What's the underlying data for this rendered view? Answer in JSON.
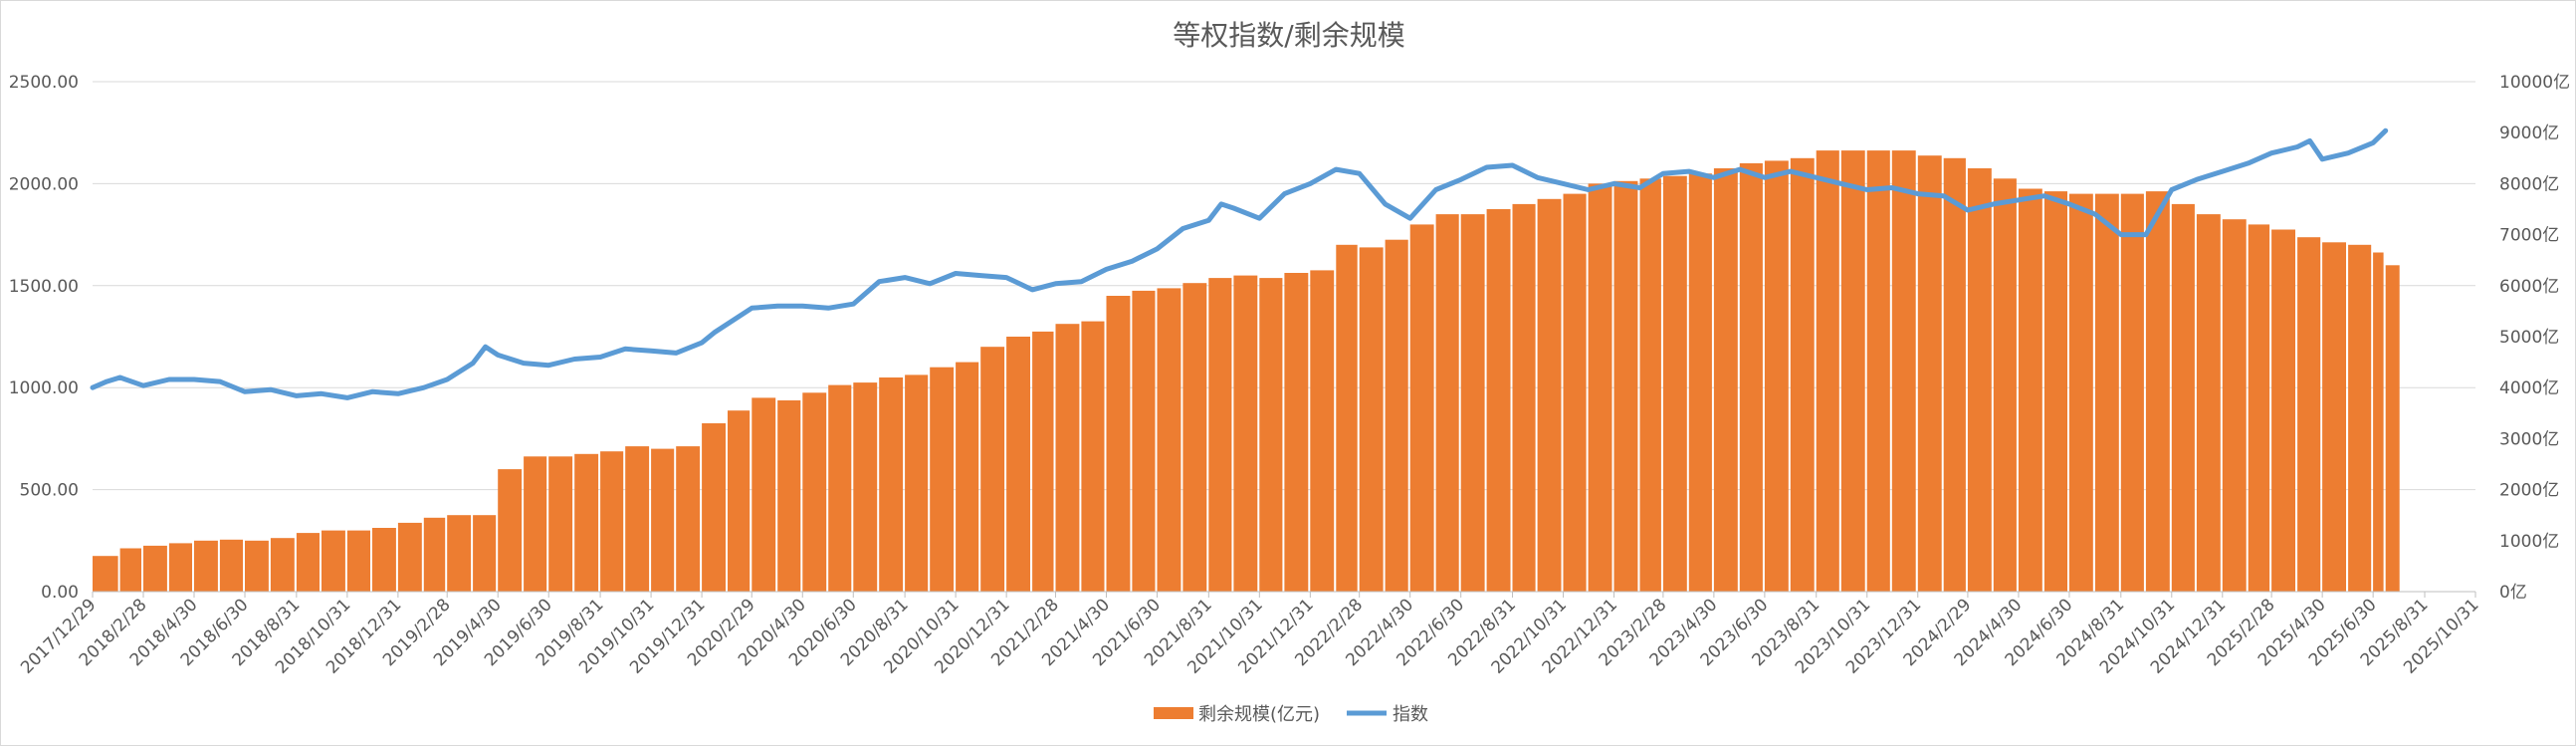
{
  "chart_data": {
    "type": "bar",
    "title": "等权指数/剩余规模",
    "left_axis": {
      "min": 0,
      "max": 2500,
      "step": 500,
      "tick_labels": [
        "0.00",
        "500.00",
        "1000.00",
        "1500.00",
        "2000.00",
        "2500.00"
      ]
    },
    "right_axis": {
      "min": 0,
      "max": 10000,
      "step": 1000,
      "tick_labels": [
        "0亿",
        "1000亿",
        "2000亿",
        "3000亿",
        "4000亿",
        "5000亿",
        "6000亿",
        "7000亿",
        "8000亿",
        "9000亿",
        "10000亿"
      ]
    },
    "x_range": [
      "2017-12-29",
      "2025-10-31"
    ],
    "x_tick_labels": [
      "2017/12/29",
      "2018/2/28",
      "2018/4/30",
      "2018/6/30",
      "2018/8/31",
      "2018/10/31",
      "2018/12/31",
      "2019/2/28",
      "2019/4/30",
      "2019/6/30",
      "2019/8/31",
      "2019/10/31",
      "2019/12/31",
      "2020/2/29",
      "2020/4/30",
      "2020/6/30",
      "2020/8/31",
      "2020/10/31",
      "2020/12/31",
      "2021/2/28",
      "2021/4/30",
      "2021/6/30",
      "2021/8/31",
      "2021/10/31",
      "2021/12/31",
      "2022/2/28",
      "2022/4/30",
      "2022/6/30",
      "2022/8/31",
      "2022/10/31",
      "2022/12/31",
      "2023/2/28",
      "2023/4/30",
      "2023/6/30",
      "2023/8/31",
      "2023/10/31",
      "2023/12/31",
      "2024/2/29",
      "2024/4/30",
      "2024/6/30",
      "2024/8/31",
      "2024/10/31",
      "2024/12/31",
      "2025/2/28",
      "2025/4/30",
      "2025/6/30",
      "2025/8/31",
      "2025/10/31"
    ],
    "grid": true,
    "legend_position": "bottom",
    "series": [
      {
        "name": "剩余规模(亿元)",
        "type": "bar",
        "axis": "right",
        "color": "#ED7D31",
        "x": [
          "2017-12-29",
          "2018-01-31",
          "2018-02-28",
          "2018-03-31",
          "2018-04-30",
          "2018-05-31",
          "2018-06-30",
          "2018-07-31",
          "2018-08-31",
          "2018-09-30",
          "2018-10-31",
          "2018-11-30",
          "2018-12-31",
          "2019-01-31",
          "2019-02-28",
          "2019-03-31",
          "2019-04-30",
          "2019-05-31",
          "2019-06-30",
          "2019-07-31",
          "2019-08-31",
          "2019-09-30",
          "2019-10-31",
          "2019-11-30",
          "2019-12-31",
          "2020-01-31",
          "2020-02-29",
          "2020-03-31",
          "2020-04-30",
          "2020-05-31",
          "2020-06-30",
          "2020-07-31",
          "2020-08-31",
          "2020-09-30",
          "2020-10-31",
          "2020-11-30",
          "2020-12-31",
          "2021-01-31",
          "2021-02-28",
          "2021-03-31",
          "2021-04-30",
          "2021-05-31",
          "2021-06-30",
          "2021-07-31",
          "2021-08-31",
          "2021-09-30",
          "2021-10-31",
          "2021-11-30",
          "2021-12-31",
          "2022-01-31",
          "2022-02-28",
          "2022-03-31",
          "2022-04-30",
          "2022-05-31",
          "2022-06-30",
          "2022-07-31",
          "2022-08-31",
          "2022-09-30",
          "2022-10-31",
          "2022-11-30",
          "2022-12-31",
          "2023-01-31",
          "2023-02-28",
          "2023-03-31",
          "2023-04-30",
          "2023-05-31",
          "2023-06-30",
          "2023-07-31",
          "2023-08-31",
          "2023-09-30",
          "2023-10-31",
          "2023-11-30",
          "2023-12-31",
          "2024-01-31",
          "2024-02-29",
          "2024-03-31",
          "2024-04-30",
          "2024-05-31",
          "2024-06-30",
          "2024-07-31",
          "2024-08-31",
          "2024-09-30",
          "2024-10-31",
          "2024-11-30",
          "2024-12-31",
          "2025-01-31",
          "2025-02-28",
          "2025-03-31",
          "2025-04-30",
          "2025-05-31",
          "2025-06-30",
          "2025-07-15"
        ],
        "values": [
          700,
          850,
          900,
          950,
          1000,
          1020,
          1000,
          1050,
          1150,
          1200,
          1200,
          1250,
          1350,
          1450,
          1500,
          1500,
          2400,
          2650,
          2650,
          2700,
          2750,
          2850,
          2800,
          2850,
          3300,
          3550,
          3800,
          3750,
          3900,
          4050,
          4100,
          4200,
          4250,
          4400,
          4500,
          4800,
          5000,
          5100,
          5250,
          5300,
          5800,
          5900,
          5950,
          6050,
          6150,
          6200,
          6150,
          6250,
          6300,
          6800,
          6750,
          6900,
          7200,
          7400,
          7400,
          7500,
          7600,
          7700,
          7800,
          8000,
          8050,
          8100,
          8150,
          8200,
          8300,
          8400,
          8450,
          8500,
          8650,
          8650,
          8650,
          8650,
          8550,
          8500,
          8300,
          8100,
          7900,
          7850,
          7800,
          7800,
          7800,
          7850,
          7600,
          7400,
          7300,
          7200,
          7100,
          6950,
          6850,
          6800,
          6650,
          6400
        ]
      },
      {
        "name": "指数",
        "type": "line",
        "axis": "left",
        "color": "#5B9BD5",
        "x": [
          "2017-12-29",
          "2018-01-15",
          "2018-01-31",
          "2018-02-28",
          "2018-03-31",
          "2018-04-30",
          "2018-05-31",
          "2018-06-30",
          "2018-07-31",
          "2018-08-31",
          "2018-09-30",
          "2018-10-31",
          "2018-11-30",
          "2018-12-31",
          "2019-01-31",
          "2019-02-28",
          "2019-03-31",
          "2019-04-15",
          "2019-04-30",
          "2019-05-31",
          "2019-06-30",
          "2019-07-31",
          "2019-08-31",
          "2019-09-30",
          "2019-10-31",
          "2019-11-30",
          "2019-12-31",
          "2020-01-15",
          "2020-02-29",
          "2020-03-31",
          "2020-04-30",
          "2020-05-31",
          "2020-06-30",
          "2020-07-31",
          "2020-08-31",
          "2020-09-30",
          "2020-10-31",
          "2020-11-30",
          "2020-12-31",
          "2021-01-31",
          "2021-02-28",
          "2021-03-31",
          "2021-04-30",
          "2021-05-31",
          "2021-06-30",
          "2021-07-31",
          "2021-08-31",
          "2021-09-15",
          "2021-09-30",
          "2021-10-31",
          "2021-11-30",
          "2021-12-31",
          "2022-01-31",
          "2022-02-28",
          "2022-03-31",
          "2022-04-30",
          "2022-05-31",
          "2022-06-30",
          "2022-07-31",
          "2022-08-31",
          "2022-09-30",
          "2022-10-31",
          "2022-11-30",
          "2022-12-31",
          "2023-01-31",
          "2023-02-28",
          "2023-03-31",
          "2023-04-30",
          "2023-05-31",
          "2023-06-30",
          "2023-07-31",
          "2023-08-31",
          "2023-09-30",
          "2023-10-31",
          "2023-11-30",
          "2023-12-31",
          "2024-01-31",
          "2024-02-29",
          "2024-03-31",
          "2024-04-30",
          "2024-05-31",
          "2024-06-30",
          "2024-07-31",
          "2024-08-31",
          "2024-09-30",
          "2024-10-31",
          "2024-11-30",
          "2024-12-31",
          "2025-01-31",
          "2025-02-28",
          "2025-03-31",
          "2025-04-15",
          "2025-04-30",
          "2025-05-31",
          "2025-06-30",
          "2025-07-15"
        ],
        "values": [
          1000,
          1030,
          1050,
          1010,
          1040,
          1040,
          1030,
          980,
          990,
          960,
          970,
          950,
          980,
          970,
          1000,
          1040,
          1120,
          1200,
          1160,
          1120,
          1110,
          1140,
          1150,
          1190,
          1180,
          1170,
          1220,
          1270,
          1390,
          1400,
          1400,
          1390,
          1410,
          1520,
          1540,
          1510,
          1560,
          1550,
          1540,
          1480,
          1510,
          1520,
          1580,
          1620,
          1680,
          1780,
          1820,
          1900,
          1880,
          1830,
          1950,
          2000,
          2070,
          2050,
          1900,
          1830,
          1970,
          2020,
          2080,
          2090,
          2030,
          2000,
          1970,
          2000,
          1980,
          2050,
          2060,
          2030,
          2070,
          2030,
          2060,
          2030,
          2000,
          1970,
          1980,
          1950,
          1940,
          1870,
          1900,
          1920,
          1940,
          1900,
          1850,
          1750,
          1750,
          1970,
          2020,
          2060,
          2100,
          2150,
          2180,
          2210,
          2120,
          2150,
          2200,
          2260
        ]
      }
    ]
  }
}
